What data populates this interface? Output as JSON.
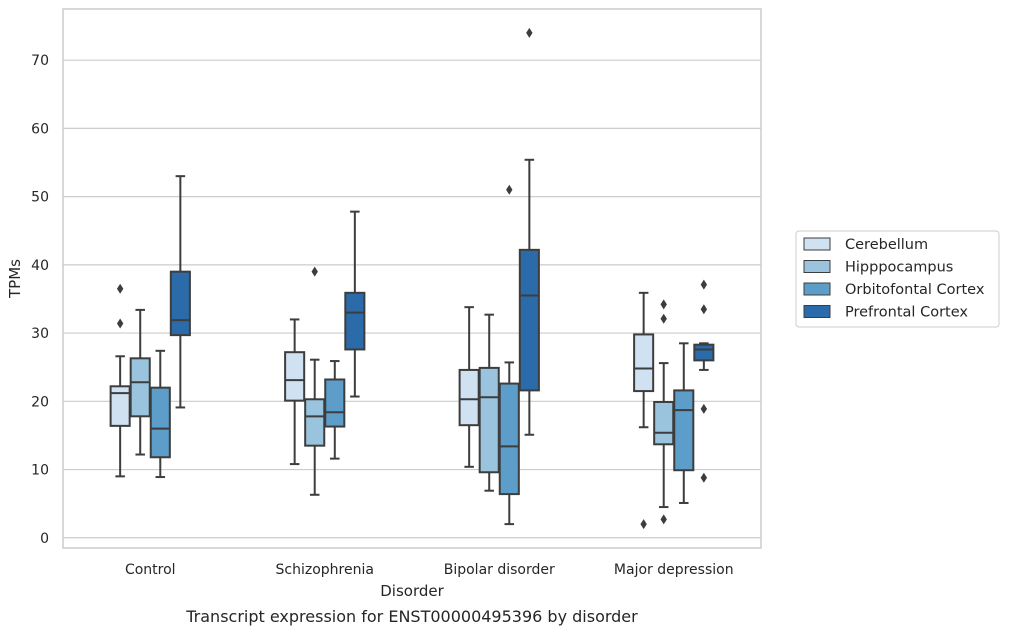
{
  "chart_data": {
    "type": "boxplot",
    "title": "",
    "caption": "Transcript expression for ENST00000495396 by disorder",
    "xlabel": "Disorder",
    "ylabel": "TPMs",
    "ylim": [
      -1.5,
      77.5
    ],
    "yticks": [
      0,
      10,
      20,
      30,
      40,
      50,
      60,
      70
    ],
    "grid": "horizontal",
    "legend_position": "right",
    "categories": [
      "Control",
      "Schizophrenia",
      "Bipolar disorder",
      "Major depression"
    ],
    "series": [
      {
        "name": "Cerebellum",
        "color": "#d0e1f2",
        "boxes": [
          {
            "whislo": 9.0,
            "q1": 16.4,
            "med": 21.2,
            "q3": 22.2,
            "whishi": 26.6,
            "fliers": [
              31.4,
              36.5
            ]
          },
          {
            "whislo": 10.8,
            "q1": 20.1,
            "med": 23.1,
            "q3": 27.2,
            "whishi": 32.0,
            "fliers": []
          },
          {
            "whislo": 10.4,
            "q1": 16.5,
            "med": 20.3,
            "q3": 24.6,
            "whishi": 33.8,
            "fliers": []
          },
          {
            "whislo": 16.2,
            "q1": 21.5,
            "med": 24.8,
            "q3": 29.8,
            "whishi": 35.9,
            "fliers": [
              2.0
            ]
          }
        ]
      },
      {
        "name": "Hipppocampus",
        "color": "#9ac4de",
        "boxes": [
          {
            "whislo": 12.2,
            "q1": 17.8,
            "med": 22.8,
            "q3": 26.3,
            "whishi": 33.4,
            "fliers": []
          },
          {
            "whislo": 6.3,
            "q1": 13.5,
            "med": 17.8,
            "q3": 20.3,
            "whishi": 26.1,
            "fliers": [
              39.0
            ]
          },
          {
            "whislo": 6.9,
            "q1": 9.6,
            "med": 20.6,
            "q3": 24.9,
            "whishi": 32.7,
            "fliers": []
          },
          {
            "whislo": 4.5,
            "q1": 13.7,
            "med": 15.4,
            "q3": 19.9,
            "whishi": 25.6,
            "fliers": [
              2.7,
              32.1,
              34.2
            ]
          }
        ]
      },
      {
        "name": "Orbitofontal Cortex",
        "color": "#5d9dc9",
        "boxes": [
          {
            "whislo": 8.9,
            "q1": 11.8,
            "med": 16.0,
            "q3": 22.0,
            "whishi": 27.4,
            "fliers": []
          },
          {
            "whislo": 11.6,
            "q1": 16.3,
            "med": 18.4,
            "q3": 23.2,
            "whishi": 25.9,
            "fliers": []
          },
          {
            "whislo": 2.0,
            "q1": 6.4,
            "med": 13.4,
            "q3": 22.6,
            "whishi": 25.7,
            "fliers": [
              51.0
            ]
          },
          {
            "whislo": 5.1,
            "q1": 9.9,
            "med": 18.7,
            "q3": 21.6,
            "whishi": 28.5,
            "fliers": []
          }
        ]
      },
      {
        "name": "Prefrontal Cortex",
        "color": "#2b6ba9",
        "boxes": [
          {
            "whislo": 19.1,
            "q1": 29.7,
            "med": 31.9,
            "q3": 39.0,
            "whishi": 53.0,
            "fliers": []
          },
          {
            "whislo": 20.7,
            "q1": 27.6,
            "med": 33.0,
            "q3": 35.9,
            "whishi": 47.8,
            "fliers": []
          },
          {
            "whislo": 15.1,
            "q1": 21.6,
            "med": 35.5,
            "q3": 42.2,
            "whishi": 55.4,
            "fliers": [
              74.0
            ]
          },
          {
            "whislo": 24.6,
            "q1": 26.0,
            "med": 27.6,
            "q3": 28.3,
            "whishi": 28.5,
            "fliers": [
              8.8,
              18.9,
              33.5,
              37.1
            ]
          }
        ]
      }
    ]
  }
}
